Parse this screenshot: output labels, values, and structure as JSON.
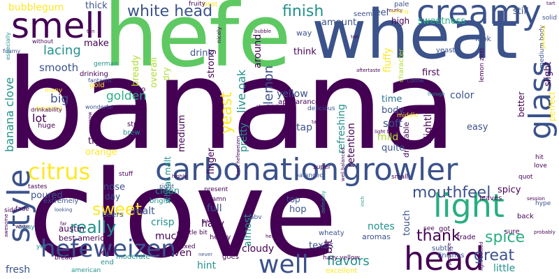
{
  "palette": {
    "c1": "#440154",
    "c2": "#3b528b",
    "c3": "#21918c",
    "c4": "#5ec962",
    "c5": "#fde725",
    "c6": "#2c728e",
    "c7": "#28ae80",
    "c8": "#addc30"
  },
  "words": [
    {
      "text": "banana",
      "color": "c1",
      "weight": 1.0
    },
    {
      "text": "clove",
      "color": "c1",
      "weight": 0.85
    },
    {
      "text": "hefe",
      "color": "c4",
      "weight": 0.55
    },
    {
      "text": "wheat",
      "color": "c2",
      "weight": 0.5
    },
    {
      "text": "creamy",
      "color": "c2",
      "weight": 0.25
    },
    {
      "text": "smell",
      "color": "c1",
      "weight": 0.24
    },
    {
      "text": "carbonation",
      "color": "c2",
      "weight": 0.22
    },
    {
      "text": "growler",
      "color": "c2",
      "weight": 0.22
    },
    {
      "text": "light",
      "color": "c7",
      "weight": 0.2
    },
    {
      "text": "head",
      "color": "c1",
      "weight": 0.2
    },
    {
      "text": "glass",
      "color": "c2",
      "weight": 0.2
    },
    {
      "text": "style",
      "color": "c2",
      "weight": 0.2
    },
    {
      "text": "well",
      "color": "c2",
      "weight": 0.18
    },
    {
      "text": "hefeweizen",
      "color": "c2",
      "weight": 0.16
    },
    {
      "text": "citrus",
      "color": "c5",
      "weight": 0.16
    },
    {
      "text": "white head",
      "color": "c2",
      "weight": 0.12
    },
    {
      "text": "finish",
      "color": "c3",
      "weight": 0.12
    },
    {
      "text": "sweet",
      "color": "c5",
      "weight": 0.12
    },
    {
      "text": "really",
      "color": "c3",
      "weight": 0.12
    },
    {
      "text": "spice",
      "color": "c7",
      "weight": 0.12
    },
    {
      "text": "great",
      "color": "c2",
      "weight": 0.12
    },
    {
      "text": "mouthfeel",
      "color": "c2",
      "weight": 0.11
    },
    {
      "text": "thank",
      "color": "c1",
      "weight": 0.11
    },
    {
      "text": "yeast",
      "color": "c5",
      "weight": 0.1
    },
    {
      "text": "lacing",
      "color": "c3",
      "weight": 0.1
    },
    {
      "text": "lemon",
      "color": "c2",
      "weight": 0.1
    },
    {
      "text": "bubblegum",
      "color": "c5",
      "weight": 0.07
    },
    {
      "text": "banana clove",
      "color": "c3",
      "weight": 0.08
    },
    {
      "text": "smooth",
      "color": "c2",
      "weight": 0.07
    },
    {
      "text": "big",
      "color": "c2",
      "weight": 0.08
    },
    {
      "text": "lot",
      "color": "c1",
      "weight": 0.08
    },
    {
      "text": "golden",
      "color": "c7",
      "weight": 0.08
    },
    {
      "text": "flavors",
      "color": "c3",
      "weight": 0.08
    },
    {
      "text": "fresh",
      "color": "c2",
      "weight": 0.07
    },
    {
      "text": "sweetness",
      "color": "c7",
      "weight": 0.06
    },
    {
      "text": "amount",
      "color": "c2",
      "weight": 0.06
    },
    {
      "text": "feel",
      "color": "c2",
      "weight": 0.06
    },
    {
      "text": "still",
      "color": "c2",
      "weight": 0.06
    },
    {
      "text": "thick",
      "color": "c2",
      "weight": 0.06
    },
    {
      "text": "make",
      "color": "c1",
      "weight": 0.06
    },
    {
      "text": "drink",
      "color": "c2",
      "weight": 0.06
    },
    {
      "text": "think",
      "color": "c1",
      "weight": 0.06
    },
    {
      "text": "yellow",
      "color": "c2",
      "weight": 0.07
    },
    {
      "text": "first",
      "color": "c1",
      "weight": 0.06
    },
    {
      "text": "time",
      "color": "c6",
      "weight": 0.06
    },
    {
      "text": "color",
      "color": "c2",
      "weight": 0.06
    },
    {
      "text": "body",
      "color": "c2",
      "weight": 0.06
    },
    {
      "text": "soft",
      "color": "c2",
      "weight": 0.07
    },
    {
      "text": "tap",
      "color": "c2",
      "weight": 0.06
    },
    {
      "text": "easy",
      "color": "c2",
      "weight": 0.06
    },
    {
      "text": "mild",
      "color": "c8",
      "weight": 0.06
    },
    {
      "text": "quite",
      "color": "c2",
      "weight": 0.06
    },
    {
      "text": "orange",
      "color": "c5",
      "weight": 0.06
    },
    {
      "text": "try",
      "color": "c1",
      "weight": 0.06
    },
    {
      "text": "poured",
      "color": "c2",
      "weight": 0.06
    },
    {
      "text": "nose",
      "color": "c2",
      "weight": 0.06
    },
    {
      "text": "day",
      "color": "c2",
      "weight": 0.05
    },
    {
      "text": "clean",
      "color": "c3",
      "weight": 0.06
    },
    {
      "text": "malt",
      "color": "c2",
      "weight": 0.06
    },
    {
      "text": "crisp",
      "color": "c3",
      "weight": 0.06
    },
    {
      "text": "much",
      "color": "c1",
      "weight": 0.06
    },
    {
      "text": "even",
      "color": "c1",
      "weight": 0.06
    },
    {
      "text": "full",
      "color": "c2",
      "weight": 0.06
    },
    {
      "text": "hazy",
      "color": "c1",
      "weight": 0.06
    },
    {
      "text": "hint",
      "color": "c3",
      "weight": 0.06
    },
    {
      "text": "cloudy",
      "color": "c1",
      "weight": 0.06
    },
    {
      "text": "hop",
      "color": "c2",
      "weight": 0.06
    },
    {
      "text": "top",
      "color": "c2",
      "weight": 0.05
    },
    {
      "text": "notes",
      "color": "c3",
      "weight": 0.06
    },
    {
      "text": "texas",
      "color": "c2",
      "weight": 0.05
    },
    {
      "text": "spicy",
      "color": "c1",
      "weight": 0.05
    },
    {
      "text": "little",
      "color": "c3",
      "weight": 0.06
    },
    {
      "text": "aromas",
      "color": "c2",
      "weight": 0.04
    },
    {
      "text": "abv",
      "color": "c2",
      "weight": 0.03
    },
    {
      "text": "beers",
      "color": "c2",
      "weight": 0.04
    },
    {
      "text": "right",
      "color": "c2",
      "weight": 0.03
    },
    {
      "text": "bright",
      "color": "c3",
      "weight": 0.03
    },
    {
      "text": "austin",
      "color": "c1",
      "weight": 0.04
    },
    {
      "text": "best american",
      "color": "c1",
      "weight": 0.04
    },
    {
      "text": "extremely",
      "color": "c2",
      "weight": 0.03
    },
    {
      "text": "moderate",
      "color": "c3",
      "weight": 0.03
    },
    {
      "text": "left",
      "color": "c1",
      "weight": 0.03
    },
    {
      "text": "end",
      "color": "c3",
      "weight": 0.03
    },
    {
      "text": "goes",
      "color": "c1",
      "weight": 0.03
    },
    {
      "text": "hazy yellow",
      "color": "c1",
      "weight": 0.03
    },
    {
      "text": "subtle",
      "color": "c2",
      "weight": 0.03
    },
    {
      "text": "finishes",
      "color": "c2",
      "weight": 0.03
    },
    {
      "text": "excellent",
      "color": "c5",
      "weight": 0.03
    },
    {
      "text": "best",
      "color": "c5",
      "weight": 0.03
    },
    {
      "text": "fruity",
      "color": "c1",
      "weight": 0.02
    },
    {
      "text": "pale",
      "color": "c2",
      "weight": 0.03
    },
    {
      "text": "seems",
      "color": "c2",
      "weight": 0.03
    },
    {
      "text": "high",
      "color": "c1",
      "weight": 0.04
    },
    {
      "text": "way",
      "color": "c2",
      "weight": 0.03
    },
    {
      "text": "look",
      "color": "c2",
      "weight": 0.03
    },
    {
      "text": "yeasty",
      "color": "c2",
      "weight": 0.03
    },
    {
      "text": "drinking",
      "color": "c1",
      "weight": 0.03
    },
    {
      "text": "gold",
      "color": "c5",
      "weight": 0.03
    },
    {
      "text": "many",
      "color": "c5",
      "weight": 0.03
    },
    {
      "text": "two",
      "color": "c1",
      "weight": 0.03
    },
    {
      "text": "straw",
      "color": "c1",
      "weight": 0.03
    },
    {
      "text": "brew",
      "color": "c3",
      "weight": 0.03
    },
    {
      "text": "huge",
      "color": "c1",
      "weight": 0.03
    },
    {
      "text": "amazing",
      "color": "c5",
      "weight": 0.03
    },
    {
      "text": "appearance",
      "color": "c1",
      "weight": 0.03
    },
    {
      "text": "delicious",
      "color": "c2",
      "weight": 0.02
    },
    {
      "text": "middle",
      "color": "c5",
      "weight": 0.03
    },
    {
      "text": "come",
      "color": "c2",
      "weight": 0.03
    },
    {
      "text": "small",
      "color": "c1",
      "weight": 0.02
    },
    {
      "text": "super",
      "color": "c1",
      "weight": 0.03
    },
    {
      "text": "balanced",
      "color": "c2",
      "weight": 0.02
    },
    {
      "text": "present",
      "color": "c1",
      "weight": 0.02
    },
    {
      "text": "damn",
      "color": "c1",
      "weight": 0.02
    },
    {
      "text": "wheaty",
      "color": "c2",
      "weight": 0.03
    },
    {
      "text": "leaves",
      "color": "c1",
      "weight": 0.02
    },
    {
      "text": "back",
      "color": "c1",
      "weight": 0.03
    },
    {
      "text": "sure",
      "color": "c1",
      "weight": 0.03
    },
    {
      "text": "hype",
      "color": "c2",
      "weight": 0.02
    },
    {
      "text": "trade",
      "color": "c1",
      "weight": 0.03
    },
    {
      "text": "got",
      "color": "c1",
      "weight": 0.03
    },
    {
      "text": "see",
      "color": "c1",
      "weight": 0.02
    },
    {
      "text": "mixed",
      "color": "c1",
      "weight": 0.02
    },
    {
      "text": "heavy",
      "color": "c1",
      "weight": 0.03
    },
    {
      "text": "little bit",
      "color": "c1",
      "weight": 0.02
    },
    {
      "text": "yet",
      "color": "c3",
      "weight": 0.02
    },
    {
      "text": "bread",
      "color": "c1",
      "weight": 0.02
    },
    {
      "text": "american",
      "color": "c3",
      "weight": 0.02
    },
    {
      "text": "fade",
      "color": "c1",
      "weight": 0.02
    },
    {
      "text": "tastes",
      "color": "c1",
      "weight": 0.02
    },
    {
      "text": "side",
      "color": "c1",
      "weight": 0.02
    },
    {
      "text": "away",
      "color": "c3",
      "weight": 0.02
    },
    {
      "text": "stuff",
      "color": "c1",
      "weight": 0.02
    },
    {
      "text": "quot",
      "color": "c1",
      "weight": 0.02
    },
    {
      "text": "hit",
      "color": "c1",
      "weight": 0.02
    },
    {
      "text": "love",
      "color": "c1",
      "weight": 0.02
    },
    {
      "text": "perfect",
      "color": "c5",
      "weight": 0.04
    },
    {
      "text": "better",
      "color": "c1",
      "weight": 0.04
    },
    {
      "text": "slight",
      "color": "c1",
      "weight": 0.05
    },
    {
      "text": "medium body",
      "color": "c2",
      "weight": 0.02
    },
    {
      "text": "solid",
      "color": "c2",
      "weight": 0.02
    },
    {
      "text": "pleasant",
      "color": "c5",
      "weight": 0.02
    },
    {
      "text": "touch",
      "color": "c2",
      "weight": 0.04
    },
    {
      "text": "slightly",
      "color": "c1",
      "weight": 0.05
    },
    {
      "text": "drinkable",
      "color": "c1",
      "weight": 0.03
    },
    {
      "text": "retention",
      "color": "c1",
      "weight": 0.05
    },
    {
      "text": "refreshing",
      "color": "c3",
      "weight": 0.05
    },
    {
      "text": "almost",
      "color": "c3",
      "weight": 0.05
    },
    {
      "text": "pretty",
      "color": "c3",
      "weight": 0.05
    },
    {
      "text": "strong",
      "color": "c1",
      "weight": 0.04
    },
    {
      "text": "live oak",
      "color": "c3",
      "weight": 0.05
    },
    {
      "text": "around",
      "color": "c1",
      "weight": 0.05
    },
    {
      "text": "bit",
      "color": "c1",
      "weight": 0.05
    },
    {
      "text": "finger",
      "color": "c1",
      "weight": 0.05
    },
    {
      "text": "wheat malt",
      "color": "c3",
      "weight": 0.04
    },
    {
      "text": "medium",
      "color": "c1",
      "weight": 0.05
    },
    {
      "text": "overall",
      "color": "c8",
      "weight": 0.05
    },
    {
      "text": "bready",
      "color": "c8",
      "weight": 0.05
    },
    {
      "text": "dry",
      "color": "c8",
      "weight": 0.04
    },
    {
      "text": "german",
      "color": "c3",
      "weight": 0.02
    },
    {
      "text": "fantastic",
      "color": "c2",
      "weight": 0.02
    },
    {
      "text": "wonderful",
      "color": "c2",
      "weight": 0.02
    },
    {
      "text": "drinkability",
      "color": "c1",
      "weight": 0.02
    },
    {
      "text": "without",
      "color": "c1",
      "weight": 0.02
    },
    {
      "text": "foamy",
      "color": "c2",
      "weight": 0.02
    },
    {
      "text": "especially",
      "color": "c3",
      "weight": 0.02
    },
    {
      "text": "lemon zest",
      "color": "c1",
      "weight": 0.02
    },
    {
      "text": "character",
      "color": "c8",
      "weight": 0.02
    },
    {
      "text": "fluffy",
      "color": "c5",
      "weight": 0.04
    },
    {
      "text": "nicely",
      "color": "c1",
      "weight": 0.02
    },
    {
      "text": "murky",
      "color": "c1",
      "weight": 0.02
    },
    {
      "text": "nothing",
      "color": "c5",
      "weight": 0.02
    },
    {
      "text": "bubble",
      "color": "c1",
      "weight": 0.02
    },
    {
      "text": "aftertaste",
      "color": "c1",
      "weight": 0.02
    },
    {
      "text": "though",
      "color": "c3",
      "weight": 0.02
    },
    {
      "text": "light body",
      "color": "c1",
      "weight": 0.02
    },
    {
      "text": "absolutely",
      "color": "c1",
      "weight": 0.02
    },
    {
      "text": "take",
      "color": "c1",
      "weight": 0.02
    },
    {
      "text": "highly",
      "color": "c1",
      "weight": 0.02
    },
    {
      "text": "definitely",
      "color": "c3",
      "weight": 0.02
    },
    {
      "text": "inch",
      "color": "c3",
      "weight": 0.02
    },
    {
      "text": "session",
      "color": "c1",
      "weight": 0.02
    },
    {
      "text": "probably",
      "color": "c1",
      "weight": 0.02
    },
    {
      "text": "presence",
      "color": "c1",
      "weight": 0.02
    },
    {
      "text": "light bodied",
      "color": "c1",
      "weight": 0.02
    },
    {
      "text": "awesome",
      "color": "c1",
      "weight": 0.02
    },
    {
      "text": "tart",
      "color": "c1",
      "weight": 0.02
    },
    {
      "text": "tan",
      "color": "c1",
      "weight": 0.02
    },
    {
      "text": "ton",
      "color": "c1",
      "weight": 0.02
    },
    {
      "text": "palate",
      "color": "c1",
      "weight": 0.02
    },
    {
      "text": "best hefeweizen",
      "color": "c1",
      "weight": 0.02
    },
    {
      "text": "wow",
      "color": "c1",
      "weight": 0.02
    },
    {
      "text": "looking",
      "color": "c2",
      "weight": 0.02
    },
    {
      "text": "white",
      "color": "c1",
      "weight": 0.02
    },
    {
      "text": "far",
      "color": "c1",
      "weight": 0.02
    },
    {
      "text": "hef",
      "color": "c1",
      "weight": 0.02
    },
    {
      "text": "never",
      "color": "c2",
      "weight": 0.02
    },
    {
      "text": "well balanced",
      "color": "c1",
      "weight": 0.02
    }
  ]
}
